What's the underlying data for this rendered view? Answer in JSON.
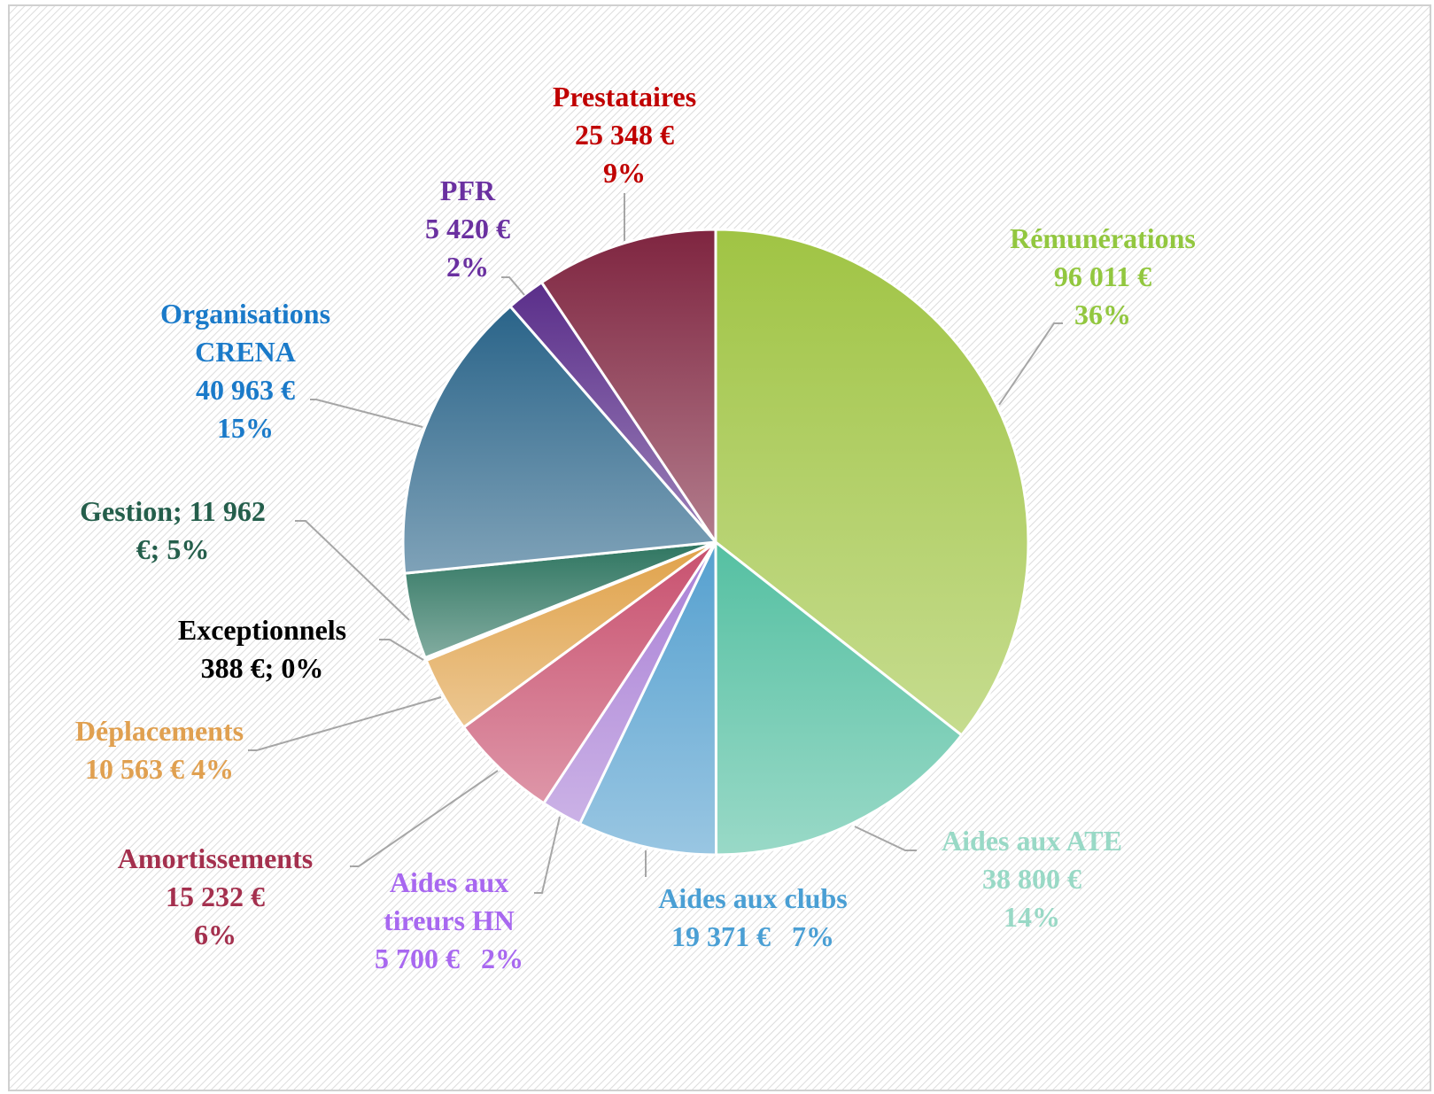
{
  "chart_data": {
    "type": "pie",
    "categories": [
      "Rémunérations",
      "Aides aux ATE",
      "Aides aux clubs",
      "Aides aux tireurs HN",
      "Amortissements",
      "Déplacements",
      "Exceptionnels",
      "Gestion",
      "Organisations CRENA",
      "PFR",
      "Prestataires"
    ],
    "values": [
      96011,
      38800,
      19371,
      5700,
      15232,
      10563,
      388,
      11962,
      40963,
      5420,
      25348
    ],
    "value_labels": [
      [
        "96 011 €",
        "36%"
      ],
      [
        "38 800 €",
        "14%"
      ],
      [
        "19 371 €   7%"
      ],
      [
        "5 700 €   2%"
      ],
      [
        "15 232 €",
        "6%"
      ],
      [
        "10 563 € 4%"
      ],
      [
        "388 €; 0%"
      ],
      [
        "; 11 962",
        "€; 5%"
      ],
      [
        "40 963 €",
        "15%"
      ],
      [
        "5 420 €",
        "2%"
      ],
      [
        "25 348 €",
        "9%"
      ]
    ],
    "colors": [
      "#a0c444",
      "#55c0a2",
      "#55a0cf",
      "#a97fd5",
      "#c8506e",
      "#e0a24a",
      "#d9d9d9",
      "#2e7560",
      "#2a6489",
      "#5a2e8a",
      "#7f2540"
    ],
    "label_colors": [
      "#92c73f",
      "#99d9c6",
      "#4a9fd4",
      "#a868f0",
      "#a4304e",
      "#e0a050",
      "#000000",
      "#245e4b",
      "#1a7ac9",
      "#6a30a0",
      "#c00000"
    ]
  }
}
